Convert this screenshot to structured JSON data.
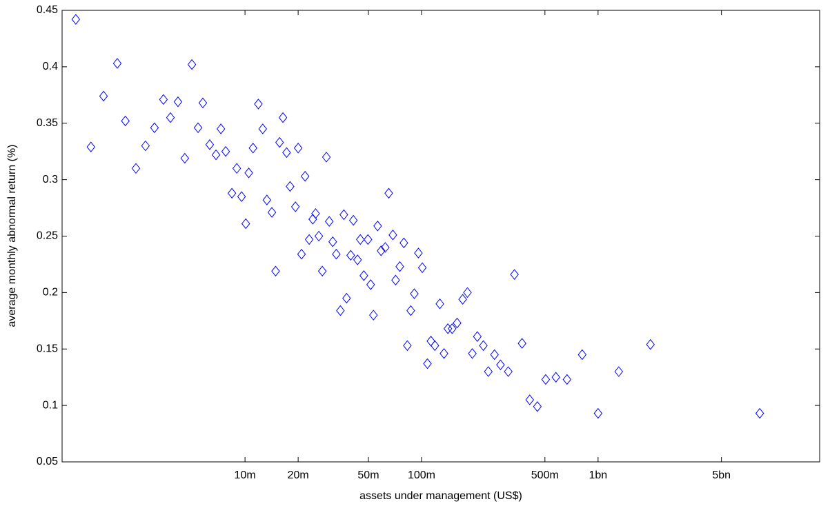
{
  "chart_data": {
    "type": "scatter",
    "xlabel": "assets under management (US$)",
    "ylabel": "average monthly abnormal return (%)",
    "xscale": "log",
    "xlim": [
      920000,
      18000000000
    ],
    "ylim": [
      0.05,
      0.45
    ],
    "xticks": [
      {
        "value": 10000000,
        "label": "10m"
      },
      {
        "value": 20000000,
        "label": "20m"
      },
      {
        "value": 50000000,
        "label": "50m"
      },
      {
        "value": 100000000,
        "label": "100m"
      },
      {
        "value": 500000000,
        "label": "500m"
      },
      {
        "value": 1000000000,
        "label": "1bn"
      },
      {
        "value": 5000000000,
        "label": "5bn"
      }
    ],
    "yticks": [
      0.05,
      0.1,
      0.15,
      0.2,
      0.25,
      0.3,
      0.35,
      0.4,
      0.45
    ],
    "color": "#0000ff",
    "marker": "diamond",
    "x": [
      1100000,
      1340000,
      1580000,
      1890000,
      2100000,
      2410000,
      2730000,
      3070000,
      3450000,
      3780000,
      4170000,
      4560000,
      5000000,
      5420000,
      5770000,
      6310000,
      6850000,
      7300000,
      7770000,
      8430000,
      8980000,
      9560000,
      10100000,
      10500000,
      11100000,
      11900000,
      12600000,
      13300000,
      14200000,
      14900000,
      15700000,
      16400000,
      17200000,
      18000000,
      19300000,
      20000000,
      20900000,
      21900000,
      23100000,
      24200000,
      25100000,
      26200000,
      27400000,
      28900000,
      30000000,
      31400000,
      32900000,
      34700000,
      36300000,
      37600000,
      39700000,
      41100000,
      43400000,
      45000000,
      47100000,
      49700000,
      51500000,
      53400000,
      56400000,
      59000000,
      62300000,
      65200000,
      68800000,
      71300000,
      75300000,
      79400000,
      83100000,
      86900000,
      91000000,
      96000000,
      101000000,
      108000000,
      113000000,
      119000000,
      127000000,
      134000000,
      141000000,
      149000000,
      159000000,
      171000000,
      182000000,
      194000000,
      207000000,
      224000000,
      239000000,
      259000000,
      280000000,
      310000000,
      336000000,
      371000000,
      410000000,
      453000000,
      505000000,
      577000000,
      667000000,
      813000000,
      1000000000,
      1310000000,
      1980000000,
      8240000000
    ],
    "values": [
      0.442,
      0.329,
      0.374,
      0.403,
      0.352,
      0.31,
      0.33,
      0.346,
      0.371,
      0.355,
      0.369,
      0.319,
      0.402,
      0.346,
      0.368,
      0.331,
      0.322,
      0.345,
      0.325,
      0.288,
      0.31,
      0.285,
      0.261,
      0.306,
      0.328,
      0.367,
      0.345,
      0.282,
      0.271,
      0.219,
      0.333,
      0.355,
      0.324,
      0.294,
      0.276,
      0.328,
      0.234,
      0.303,
      0.247,
      0.265,
      0.27,
      0.25,
      0.219,
      0.32,
      0.263,
      0.245,
      0.234,
      0.184,
      0.269,
      0.195,
      0.233,
      0.264,
      0.229,
      0.247,
      0.215,
      0.247,
      0.207,
      0.18,
      0.259,
      0.237,
      0.24,
      0.288,
      0.251,
      0.211,
      0.223,
      0.244,
      0.153,
      0.184,
      0.199,
      0.235,
      0.222,
      0.137,
      0.157,
      0.153,
      0.19,
      0.146,
      0.168,
      0.168,
      0.173,
      0.194,
      0.2,
      0.146,
      0.161,
      0.153,
      0.13,
      0.145,
      0.136,
      0.13,
      0.216,
      0.155,
      0.105,
      0.099,
      0.123,
      0.125,
      0.123,
      0.145,
      0.093,
      0.13,
      0.154,
      0.093
    ]
  }
}
